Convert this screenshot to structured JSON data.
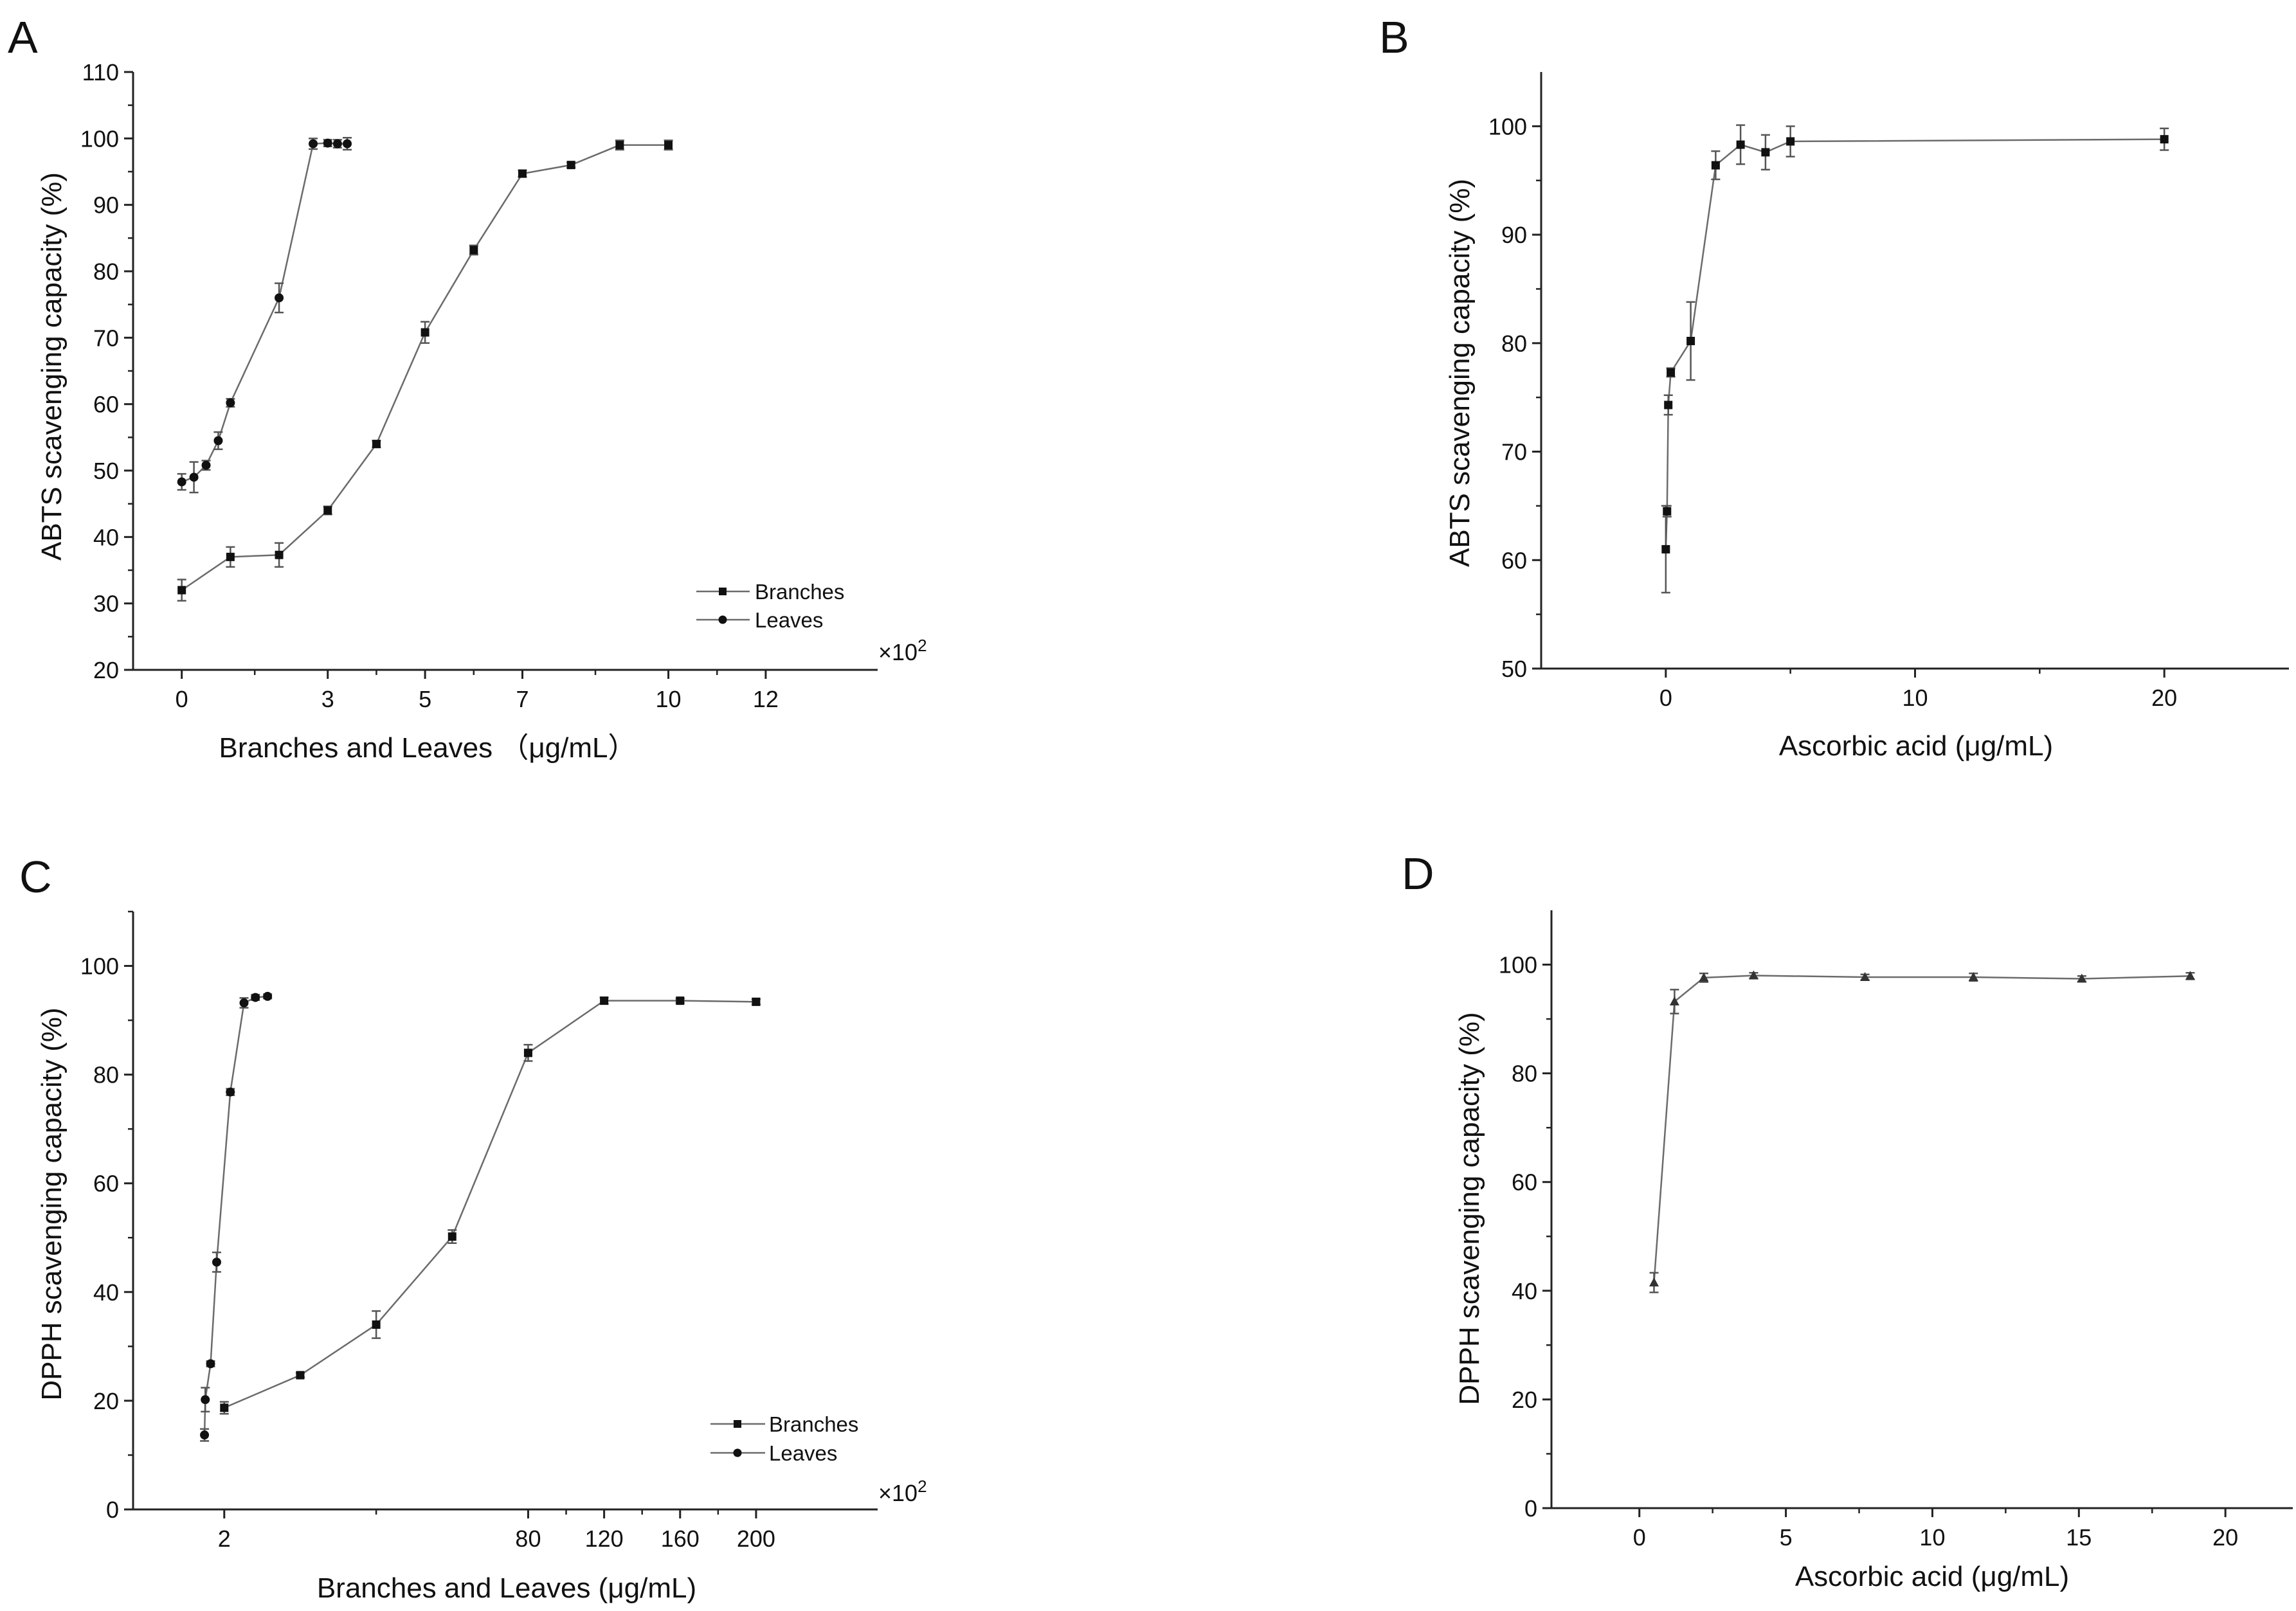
{
  "chart_data": [
    {
      "panel": "A",
      "type": "line",
      "xlabel": "Branches and Leaves （μg/mL）",
      "ylabel": "ABTS scavenging capacity (%)",
      "ylim": [
        20,
        110
      ],
      "yticks": [
        "20",
        "30",
        "40",
        "50",
        "60",
        "70",
        "80",
        "90",
        "100",
        "110"
      ],
      "xticks": [
        "0",
        "3",
        "5",
        "7",
        "10",
        "12"
      ],
      "xlim": [
        -1,
        14.3
      ],
      "x_multiplier": "×10",
      "x_multiplier_exp": "2",
      "legend": [
        "Branches",
        "Leaves"
      ],
      "series": [
        {
          "name": "Branches",
          "marker": "square",
          "x": [
            0,
            1,
            2,
            3,
            4,
            5,
            6,
            7,
            8,
            9,
            10
          ],
          "y": [
            32,
            37,
            37.3,
            44,
            54,
            70.8,
            83.2,
            94.7,
            96,
            99,
            99
          ],
          "err": [
            1.6,
            1.5,
            1.8,
            0.6,
            0.5,
            1.6,
            0.7,
            0.5,
            0.4,
            0.7,
            0.7
          ]
        },
        {
          "name": "Leaves",
          "marker": "circle",
          "x": [
            0,
            0.25,
            0.5,
            0.75,
            1,
            2,
            2.7,
            3.0,
            3.2,
            3.4
          ],
          "y": [
            48.3,
            49,
            50.8,
            54.5,
            60.2,
            76,
            99.2,
            99.3,
            99.2,
            99.2
          ],
          "err": [
            1.2,
            2.3,
            0.7,
            1.3,
            0.6,
            2.2,
            0.8,
            0.5,
            0.6,
            0.9
          ]
        }
      ]
    },
    {
      "panel": "B",
      "type": "line",
      "xlabel": "Ascorbic acid (μg/mL)",
      "ylabel": "ABTS scavenging capacity (%)",
      "ylim": [
        50,
        105
      ],
      "yticks": [
        "50",
        "60",
        "70",
        "80",
        "90",
        "100"
      ],
      "xticks": [
        "0",
        "10",
        "20"
      ],
      "xlim": [
        -5,
        25
      ],
      "series": [
        {
          "name": "Ascorbic acid",
          "marker": "square",
          "x": [
            0,
            0.05,
            0.1,
            0.2,
            1,
            2,
            3,
            4,
            5,
            20
          ],
          "y": [
            61,
            64.5,
            74.3,
            77.3,
            80.2,
            96.4,
            98.3,
            97.6,
            98.6,
            98.8
          ],
          "err": [
            4,
            0.5,
            0.9,
            0.4,
            3.6,
            1.3,
            1.8,
            1.6,
            1.4,
            1
          ]
        }
      ]
    },
    {
      "panel": "C",
      "type": "line",
      "xlabel": "Branches and Leaves (μg/mL)",
      "ylabel": "DPPH scavenging capacity (%)",
      "ylim": [
        0,
        110
      ],
      "yticks": [
        "0",
        "20",
        "40",
        "60",
        "80",
        "100"
      ],
      "xticks": [
        "2",
        "80",
        "120",
        "160",
        "200"
      ],
      "xlim": [
        -1.2,
        8.6
      ],
      "x_multiplier": "×10",
      "x_multiplier_exp": "2",
      "legend": [
        "Branches",
        "Leaves"
      ],
      "series": [
        {
          "name": "Branches",
          "marker": "square",
          "x": [
            0,
            1,
            2,
            3,
            4,
            5,
            6,
            7
          ],
          "y": [
            18.7,
            24.7,
            34,
            50.2,
            84,
            93.6,
            93.6,
            93.4
          ],
          "err": [
            1.1,
            0.4,
            2.5,
            1.2,
            1.5,
            0.6,
            0.4,
            0.5
          ]
        },
        {
          "name": "Leaves",
          "marker": "circle",
          "x": [
            -0.26,
            -0.25,
            -0.18,
            -0.1,
            0.08,
            0.26,
            0.41,
            0.57
          ],
          "y": [
            13.7,
            20.2,
            26.8,
            45.5,
            76.8,
            93.2,
            94.2,
            94.4
          ],
          "err": [
            1.1,
            2.2,
            0.5,
            1.8,
            0.6,
            0.9,
            0.5,
            0.4
          ]
        }
      ]
    },
    {
      "panel": "D",
      "type": "line",
      "xlabel": "Ascorbic acid (μg/mL)",
      "ylabel": "DPPH scavenging capacity (%)",
      "ylim": [
        0,
        110
      ],
      "yticks": [
        "0",
        "20",
        "40",
        "60",
        "80",
        "100"
      ],
      "xticks": [
        "0",
        "5",
        "10",
        "15",
        "20"
      ],
      "xlim": [
        -3,
        22.3
      ],
      "series": [
        {
          "name": "Ascorbic acid",
          "marker": "triangle",
          "x": [
            0.5,
            1.2,
            2.2,
            3.9,
            7.7,
            11.4,
            15.1,
            18.8
          ],
          "y": [
            41.5,
            93.2,
            97.6,
            98,
            97.7,
            97.7,
            97.4,
            97.9
          ],
          "err": [
            1.8,
            2.2,
            0.8,
            0.5,
            0.5,
            0.7,
            0.5,
            0.6
          ]
        }
      ]
    }
  ]
}
